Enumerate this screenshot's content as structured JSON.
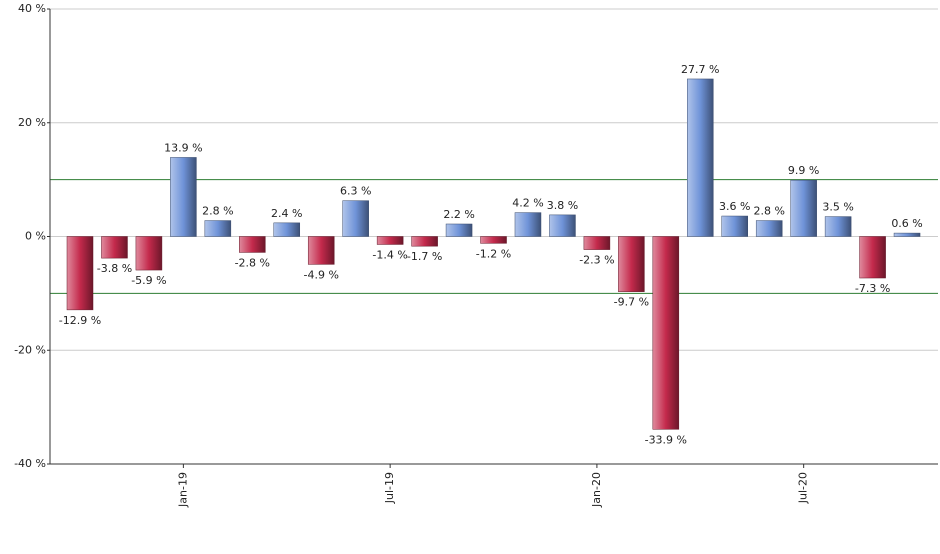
{
  "chart_data": {
    "type": "bar",
    "categories": [
      null,
      null,
      null,
      "Jan-19",
      null,
      null,
      null,
      null,
      null,
      "Jul-19",
      null,
      null,
      null,
      null,
      null,
      "Jan-20",
      null,
      null,
      null,
      null,
      null,
      "Jul-20",
      null,
      null,
      null
    ],
    "values": [
      -12.9,
      -3.8,
      -5.9,
      13.9,
      2.8,
      -2.8,
      2.4,
      -4.9,
      6.3,
      -1.4,
      -1.7,
      2.2,
      -1.2,
      4.2,
      3.8,
      -2.3,
      -9.7,
      -33.9,
      27.7,
      3.6,
      2.8,
      9.9,
      3.5,
      -7.3,
      0.6
    ],
    "value_labels": [
      "-12.9 %",
      "-3.8 %",
      "-5.9 %",
      "13.9 %",
      "2.8 %",
      "-2.8 %",
      "2.4 %",
      "-4.9 %",
      "6.3 %",
      "-1.4 %",
      "-1.7 %",
      "2.2 %",
      "-1.2 %",
      "4.2 %",
      "3.8 %",
      "-2.3 %",
      "-9.7 %",
      "-33.9 %",
      "27.7 %",
      "3.6 %",
      "2.8 %",
      "9.9 %",
      "3.5 %",
      "-7.3 %",
      "0.6 %"
    ],
    "positive_color": "#6f93d8",
    "negative_color": "#c42a4c",
    "ylim": [
      -40,
      40
    ],
    "yticks": [
      {
        "value": -40,
        "label": "-40 %"
      },
      {
        "value": -20,
        "label": "-20 %"
      },
      {
        "value": 0,
        "label": "0 %"
      },
      {
        "value": 20,
        "label": "20 %"
      },
      {
        "value": 40,
        "label": "40 %"
      }
    ],
    "grid": true,
    "reference_lines": [
      {
        "value": 10,
        "color": "#2e7d32"
      },
      {
        "value": -10,
        "color": "#2e7d32"
      }
    ]
  }
}
